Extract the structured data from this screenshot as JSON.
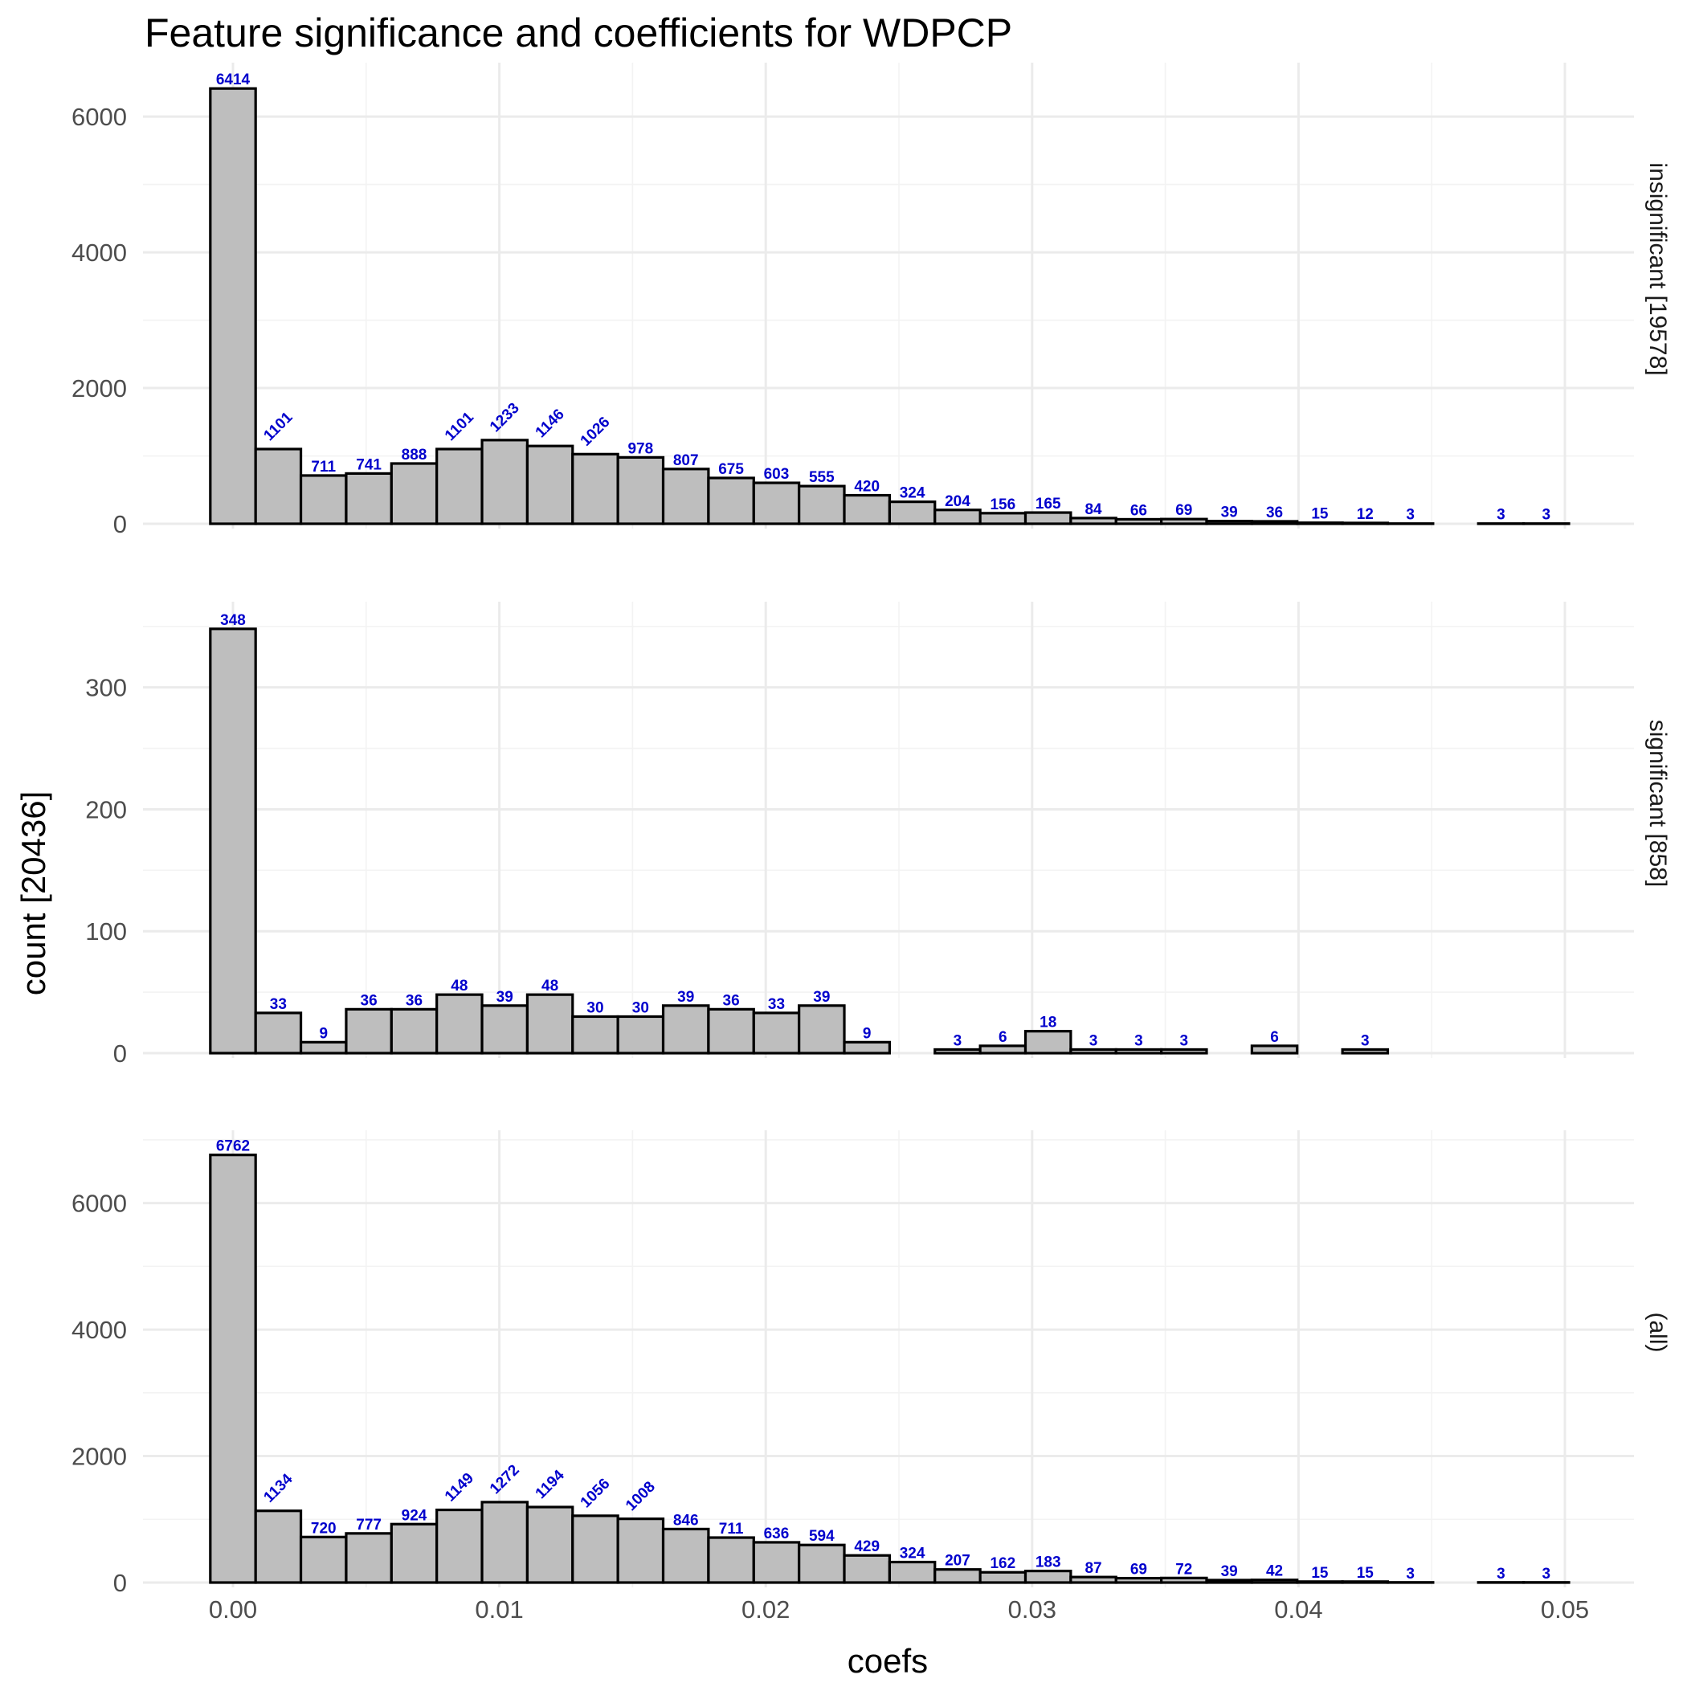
{
  "chart_data": {
    "type": "bar",
    "title": "Feature significance and coefficients for WDPCP",
    "xlabel": "coefs",
    "ylabel": "count [20436]",
    "x_ticks": [
      "0.00",
      "0.01",
      "0.02",
      "0.03",
      "0.04",
      "0.05"
    ],
    "x_tick_values": [
      0,
      0.01,
      0.02,
      0.03,
      0.04,
      0.05
    ],
    "xlim": [
      -0.0017,
      0.0527
    ],
    "bin_width": 0.0017,
    "bin_centers": [
      0.0,
      0.0017,
      0.0034,
      0.0051,
      0.0068,
      0.0085,
      0.0102,
      0.0119,
      0.0136,
      0.0153,
      0.017,
      0.0187,
      0.0204,
      0.0221,
      0.0238,
      0.0255,
      0.0272,
      0.0289,
      0.0306,
      0.0323,
      0.034,
      0.0357,
      0.0374,
      0.0391,
      0.0408,
      0.0425,
      0.0442,
      0.0459,
      0.0476,
      0.0493
    ],
    "grid": true,
    "bar_fill": "#bebebe",
    "bar_stroke": "#000000",
    "label_color": "#0000cc",
    "panels": [
      {
        "strip": "insignificant [19578]",
        "ylim": [
          0,
          6700
        ],
        "y_ticks": [
          0,
          2000,
          4000,
          6000
        ],
        "values": [
          6414,
          1101,
          711,
          741,
          888,
          1101,
          1233,
          1146,
          1026,
          978,
          807,
          675,
          603,
          555,
          420,
          324,
          204,
          156,
          165,
          84,
          66,
          69,
          39,
          36,
          15,
          12,
          3,
          0,
          3,
          3
        ],
        "labels": [
          "6414",
          "1101",
          "711",
          "741",
          "888",
          "1101",
          "1233",
          "1146",
          "1026",
          "978",
          "807",
          "675",
          "603",
          "555",
          "420",
          "324",
          "204",
          "156",
          "165",
          "84",
          "66",
          "69",
          "39",
          "36",
          "15",
          "12",
          "3",
          "",
          "3",
          "3"
        ]
      },
      {
        "strip": "significant [858]",
        "ylim": [
          0,
          365
        ],
        "y_ticks": [
          0,
          100,
          200,
          300
        ],
        "values": [
          348,
          33,
          9,
          36,
          36,
          48,
          39,
          48,
          30,
          30,
          39,
          36,
          33,
          39,
          9,
          0,
          3,
          6,
          18,
          3,
          3,
          3,
          0,
          6,
          0,
          3,
          0,
          0,
          0,
          0
        ],
        "labels": [
          "348",
          "33",
          "9",
          "36",
          "36",
          "48",
          "39",
          "48",
          "30",
          "30",
          "39",
          "36",
          "33",
          "39",
          "9",
          "",
          "3",
          "6",
          "18",
          "3",
          "3",
          "3",
          "",
          "6",
          "",
          "3",
          "",
          "",
          "",
          ""
        ]
      },
      {
        "strip": "(all)",
        "ylim": [
          0,
          7050
        ],
        "y_ticks": [
          0,
          2000,
          4000,
          6000
        ],
        "values": [
          6762,
          1134,
          720,
          777,
          924,
          1149,
          1272,
          1194,
          1056,
          1008,
          846,
          711,
          636,
          594,
          429,
          324,
          207,
          162,
          183,
          87,
          69,
          72,
          39,
          42,
          15,
          15,
          3,
          0,
          3,
          3
        ],
        "labels": [
          "6762",
          "1134",
          "720",
          "777",
          "924",
          "1149",
          "1272",
          "1194",
          "1056",
          "1008",
          "846",
          "711",
          "636",
          "594",
          "429",
          "324",
          "207",
          "162",
          "183",
          "87",
          "69",
          "72",
          "39",
          "42",
          "15",
          "15",
          "3",
          "",
          "3",
          "3"
        ]
      }
    ]
  }
}
